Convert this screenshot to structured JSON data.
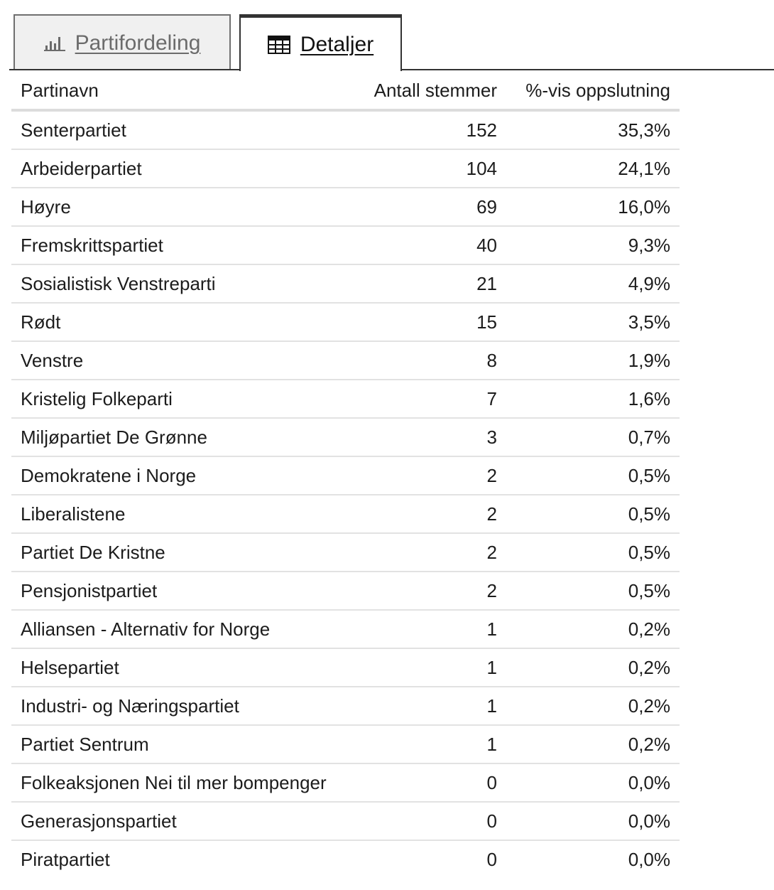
{
  "tabs": {
    "partifordeling": {
      "label": "Partifordeling",
      "icon": "bar-chart-icon"
    },
    "detaljer": {
      "label": "Detaljer",
      "icon": "table-icon"
    }
  },
  "table": {
    "headers": {
      "name": "Partinavn",
      "votes": "Antall stemmer",
      "percent": "%-vis oppslutning"
    },
    "rows": [
      {
        "name": "Senterpartiet",
        "votes": "152",
        "percent": "35,3%"
      },
      {
        "name": "Arbeiderpartiet",
        "votes": "104",
        "percent": "24,1%"
      },
      {
        "name": "Høyre",
        "votes": "69",
        "percent": "16,0%"
      },
      {
        "name": "Fremskrittspartiet",
        "votes": "40",
        "percent": "9,3%"
      },
      {
        "name": "Sosialistisk Venstreparti",
        "votes": "21",
        "percent": "4,9%"
      },
      {
        "name": "Rødt",
        "votes": "15",
        "percent": "3,5%"
      },
      {
        "name": "Venstre",
        "votes": "8",
        "percent": "1,9%"
      },
      {
        "name": "Kristelig Folkeparti",
        "votes": "7",
        "percent": "1,6%"
      },
      {
        "name": "Miljøpartiet De Grønne",
        "votes": "3",
        "percent": "0,7%"
      },
      {
        "name": "Demokratene i Norge",
        "votes": "2",
        "percent": "0,5%"
      },
      {
        "name": "Liberalistene",
        "votes": "2",
        "percent": "0,5%"
      },
      {
        "name": "Partiet De Kristne",
        "votes": "2",
        "percent": "0,5%"
      },
      {
        "name": "Pensjonistpartiet",
        "votes": "2",
        "percent": "0,5%"
      },
      {
        "name": "Alliansen - Alternativ for Norge",
        "votes": "1",
        "percent": "0,2%"
      },
      {
        "name": "Helsepartiet",
        "votes": "1",
        "percent": "0,2%"
      },
      {
        "name": "Industri- og Næringspartiet",
        "votes": "1",
        "percent": "0,2%"
      },
      {
        "name": "Partiet Sentrum",
        "votes": "1",
        "percent": "0,2%"
      },
      {
        "name": "Folkeaksjonen Nei til mer bompenger",
        "votes": "0",
        "percent": "0,0%"
      },
      {
        "name": "Generasjonspartiet",
        "votes": "0",
        "percent": "0,0%"
      },
      {
        "name": "Piratpartiet",
        "votes": "0",
        "percent": "0,0%"
      }
    ]
  }
}
